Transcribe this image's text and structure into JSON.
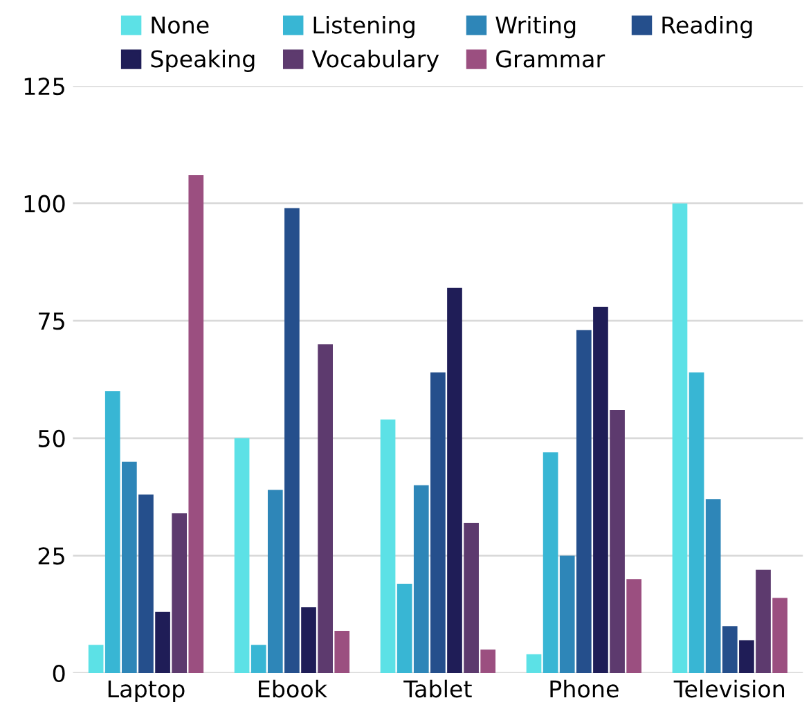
{
  "chart_data": {
    "type": "bar",
    "categories": [
      "Laptop",
      "Ebook",
      "Tablet",
      "Phone",
      "Television"
    ],
    "series": [
      {
        "name": "None",
        "color": "#5ce1e6",
        "values": [
          6,
          50,
          54,
          4,
          100
        ]
      },
      {
        "name": "Listening",
        "color": "#38b6d4",
        "values": [
          60,
          6,
          19,
          47,
          64
        ]
      },
      {
        "name": "Writing",
        "color": "#2e86b8",
        "values": [
          45,
          39,
          40,
          25,
          37
        ]
      },
      {
        "name": "Reading",
        "color": "#254f8c",
        "values": [
          38,
          99,
          64,
          73,
          10
        ]
      },
      {
        "name": "Speaking",
        "color": "#1f1d57",
        "values": [
          13,
          14,
          82,
          78,
          7
        ]
      },
      {
        "name": "Vocabulary",
        "color": "#5d3a6e",
        "values": [
          34,
          70,
          32,
          56,
          22
        ]
      },
      {
        "name": "Grammar",
        "color": "#9b4f80",
        "values": [
          106,
          9,
          5,
          20,
          16
        ]
      }
    ],
    "ylim": [
      0,
      125
    ],
    "yticks": [
      0,
      25,
      50,
      75,
      100,
      125
    ],
    "grid": "y",
    "legend": "top"
  }
}
